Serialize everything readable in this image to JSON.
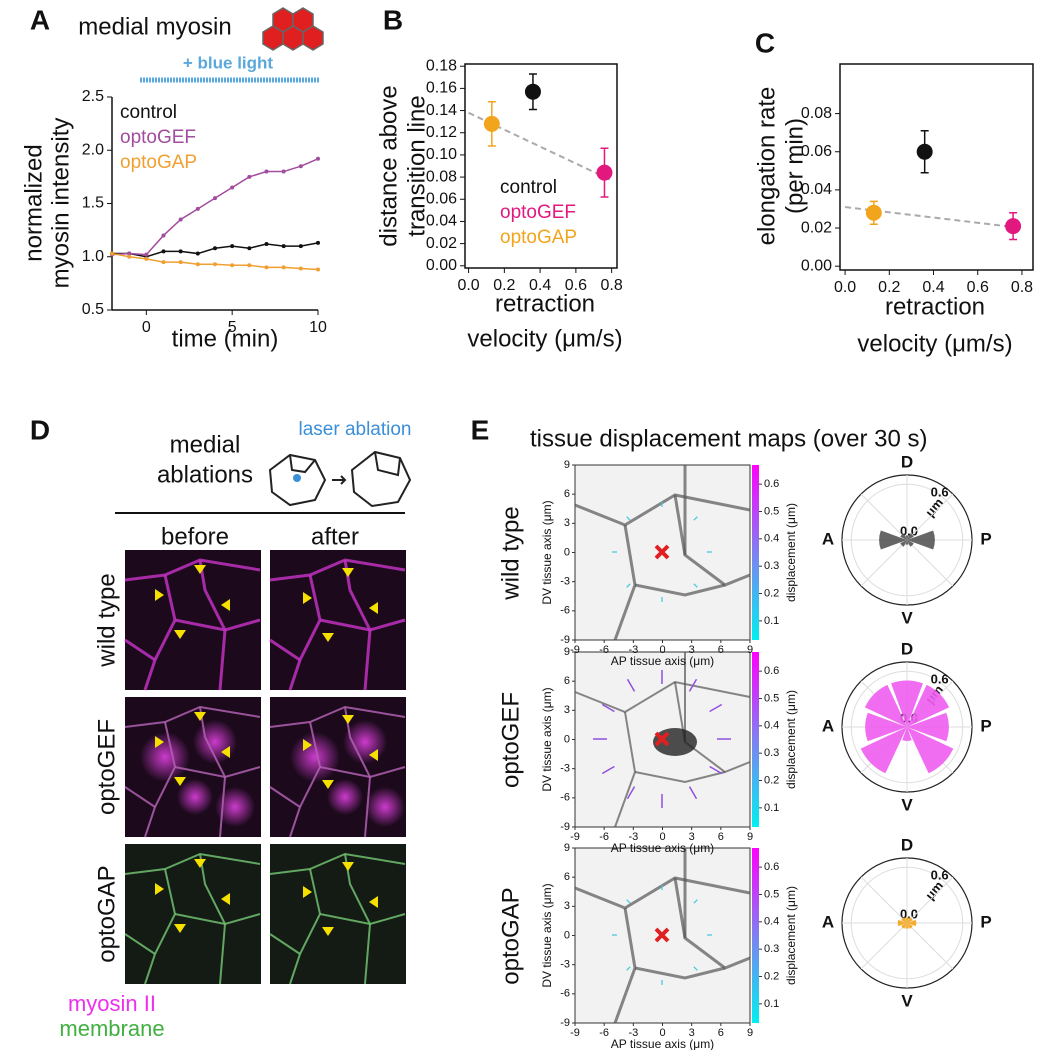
{
  "chart_data": [
    {
      "type": "line",
      "panel": "A",
      "title": "medial myosin",
      "annotation": "+ blue light",
      "ylabel": [
        "normalized",
        "myosin intensity"
      ],
      "xlabel": [
        "time (min)"
      ],
      "x": [
        -2,
        -1,
        0,
        1,
        2,
        3,
        4,
        5,
        6,
        7,
        8,
        9,
        10
      ],
      "series": [
        {
          "name": "control",
          "color": "#111111",
          "values": [
            1.03,
            1.03,
            1.0,
            1.05,
            1.05,
            1.03,
            1.08,
            1.1,
            1.08,
            1.12,
            1.1,
            1.1,
            1.13
          ]
        },
        {
          "name": "optoGEF",
          "color": "#a24c9e",
          "values": [
            1.02,
            1.03,
            1.02,
            1.2,
            1.35,
            1.45,
            1.55,
            1.65,
            1.75,
            1.8,
            1.8,
            1.85,
            1.92
          ]
        },
        {
          "name": "optoGAP",
          "color": "#f0a030",
          "values": [
            1.03,
            1.0,
            0.98,
            0.95,
            0.95,
            0.93,
            0.93,
            0.92,
            0.92,
            0.9,
            0.9,
            0.89,
            0.88
          ]
        }
      ],
      "xlim": [
        -2,
        10
      ],
      "xticks": [
        0,
        5,
        10
      ],
      "ylim": [
        0.5,
        2.5
      ],
      "yticks": [
        0.5,
        {
          "value": 1,
          "label": "1.0"
        },
        1.5,
        {
          "value": 2,
          "label": "2.0"
        },
        2.5
      ]
    },
    {
      "type": "scatter",
      "panel": "B",
      "ylabel": [
        "distance above",
        "transition line"
      ],
      "xlabel": [
        "retraction",
        "velocity (μm/s)"
      ],
      "series": [
        {
          "name": "control",
          "color": "#111111",
          "x": [
            0.36
          ],
          "values": [
            0.157
          ],
          "errors": [
            0.016
          ]
        },
        {
          "name": "optoGEF",
          "color": "#e2187f",
          "x": [
            0.76
          ],
          "values": [
            0.084
          ],
          "errors": [
            0.022
          ]
        },
        {
          "name": "optoGAP",
          "color": "#f2a51c",
          "x": [
            0.13
          ],
          "values": [
            0.128
          ],
          "errors": [
            0.02
          ]
        }
      ],
      "trend": {
        "x": [
          0,
          0.8
        ],
        "y": [
          0.138,
          0.077
        ]
      },
      "xlim": [
        -0.02,
        0.83
      ],
      "xticks": [
        {
          "value": 0,
          "label": "0.0"
        },
        0.2,
        0.4,
        0.6,
        0.8
      ],
      "ylim": [
        -0.002,
        0.182
      ],
      "yticks": [
        {
          "value": 0,
          "label": "0.00"
        },
        0.02,
        0.04,
        0.06,
        0.08,
        {
          "value": 0.1,
          "label": "0.10"
        },
        0.12,
        0.14,
        0.16,
        0.18
      ]
    },
    {
      "type": "scatter",
      "panel": "C",
      "ylabel": [
        "elongation rate",
        "(per min)"
      ],
      "xlabel": [
        "retraction",
        "velocity (μm/s)"
      ],
      "series": [
        {
          "color": "#111111",
          "x": [
            0.36
          ],
          "values": [
            0.06
          ],
          "errors": [
            0.011
          ]
        },
        {
          "color": "#e2187f",
          "x": [
            0.76
          ],
          "values": [
            0.021
          ],
          "errors": [
            0.007
          ]
        },
        {
          "color": "#f2a51c",
          "x": [
            0.13
          ],
          "values": [
            0.028
          ],
          "errors": [
            0.006
          ]
        }
      ],
      "trend": {
        "x": [
          0,
          0.8
        ],
        "y": [
          0.031,
          0.02
        ]
      },
      "xlim": [
        -0.023,
        0.85
      ],
      "xticks": [
        {
          "value": 0,
          "label": "0.0"
        },
        0.2,
        0.4,
        0.6,
        0.8
      ],
      "ylim": [
        -0.002,
        0.106
      ],
      "yticks": [
        {
          "value": 0,
          "label": "0.00"
        },
        0.02,
        0.04,
        0.06,
        0.08
      ]
    }
  ],
  "panel_d": {
    "letter": "D",
    "title": [
      "medial",
      "ablations"
    ],
    "schematic_label": "laser ablation",
    "columns": [
      "before",
      "after"
    ],
    "rows": [
      "wild type",
      "optoGEF",
      "optoGAP"
    ],
    "legend": [
      "myosin II",
      "membrane"
    ]
  },
  "panel_e": {
    "letter": "E",
    "title": "tissue displacement maps (over 30 s)",
    "rows": [
      {
        "label": "wild type",
        "color": "#555555",
        "polar_values": [
          0.3,
          0.08,
          0.05,
          0.08,
          0.3,
          0.08,
          0.05,
          0.08
        ]
      },
      {
        "label": "optoGEF",
        "color": "#ee5cee",
        "polar_values": [
          0.45,
          0.5,
          0.5,
          0.5,
          0.45,
          0.55,
          0.15,
          0.55
        ]
      },
      {
        "label": "optoGAP",
        "color": "#f2a51c",
        "polar_values": [
          0.1,
          0.07,
          0.06,
          0.07,
          0.1,
          0.07,
          0.06,
          0.07
        ]
      }
    ],
    "map": {
      "xlabel": "AP tissue axis (μm)",
      "ylabel": "DV tissue axis (μm)",
      "colorbar_label": "displacement (μm)",
      "xlim": [
        -9,
        9
      ],
      "ylim": [
        -9,
        9
      ],
      "xticks": [
        -9,
        -6,
        -3,
        0,
        3,
        6,
        9
      ],
      "yticks": [
        -9,
        -6,
        -3,
        0,
        3,
        6,
        9
      ],
      "clim": [
        0.03,
        0.67
      ],
      "cticks": [
        0.1,
        0.2,
        0.3,
        0.4,
        0.5,
        0.6
      ]
    },
    "polar": {
      "rlim": [
        0,
        0.7
      ],
      "rticks": [
        {
          "value": 0,
          "label": "0.0"
        },
        0.6
      ],
      "unit": "μm",
      "directions": {
        "top": "D",
        "right": "P",
        "bottom": "V",
        "left": "A"
      }
    }
  }
}
